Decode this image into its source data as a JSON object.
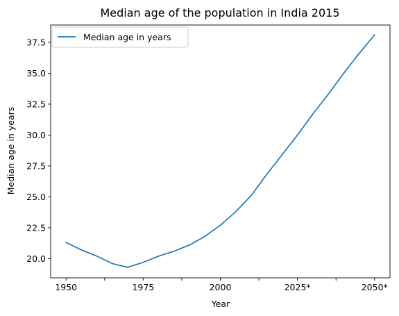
{
  "chart_data": {
    "type": "line",
    "title": "Median age of the population in India 2015",
    "xlabel": "Year",
    "ylabel": "Median age in years",
    "x": [
      1950,
      1955,
      1960,
      1965,
      1970,
      1975,
      1980,
      1985,
      1990,
      1995,
      2000,
      2005,
      2010,
      2015,
      2020,
      2025,
      2030,
      2035,
      2040,
      2045,
      2050
    ],
    "x_tick_labels": [
      {
        "year": 1950,
        "label": "1950"
      },
      {
        "year": 1975,
        "label": "1975"
      },
      {
        "year": 2000,
        "label": "2000"
      },
      {
        "year": 2025,
        "label": "2025*"
      },
      {
        "year": 2050,
        "label": "2050*"
      }
    ],
    "x_minor_ticks": [
      1962.5,
      1987.5,
      2012.5,
      2037.5
    ],
    "xlim": [
      1945,
      2055
    ],
    "ylim": [
      18.45,
      38.9
    ],
    "y_ticks": [
      20.0,
      22.5,
      25.0,
      27.5,
      30.0,
      32.5,
      35.0,
      37.5
    ],
    "y_tick_labels": [
      "20.0",
      "22.5",
      "25.0",
      "27.5",
      "30.0",
      "32.5",
      "35.0",
      "37.5"
    ],
    "series": [
      {
        "name": "Median age in years",
        "color": "#1f77b4",
        "values": [
          21.3,
          20.7,
          20.2,
          19.6,
          19.3,
          19.7,
          20.2,
          20.6,
          21.1,
          21.8,
          22.7,
          23.8,
          25.1,
          26.8,
          28.4,
          30.0,
          31.7,
          33.3,
          35.0,
          36.6,
          38.1
        ]
      }
    ],
    "legend": {
      "position": "top-left"
    },
    "grid": false
  }
}
